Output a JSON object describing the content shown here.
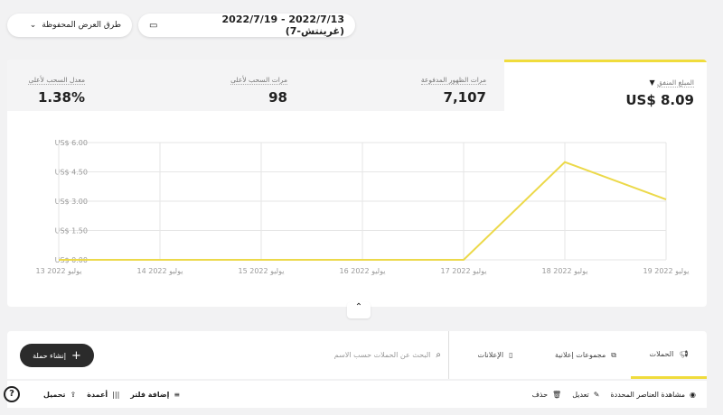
{
  "header": {
    "date_range": "2022/7/13 - 2022/7/19 (غرينتش-7)",
    "saved_views": "طرق العرض المحفوظة"
  },
  "stats": [
    {
      "label": "المبلغ المنفق",
      "value": "US$ 8.09",
      "selected": true
    },
    {
      "label": "مرات الظهور المدفوعة",
      "value": "7,107"
    },
    {
      "label": "مرات السحب لأعلى",
      "value": "98"
    },
    {
      "label": "معدل السحب لأعلى",
      "value": "1.38%"
    }
  ],
  "chart_data": {
    "type": "line",
    "x": [
      "13 يوليو 2022",
      "14 يوليو 2022",
      "15 يوليو 2022",
      "16 يوليو 2022",
      "17 يوليو 2022",
      "18 يوليو 2022",
      "19 يوليو 2022"
    ],
    "values": [
      0,
      0,
      0,
      0,
      0,
      5.0,
      3.09
    ],
    "yticks": [
      "US$ 0.00",
      "US$ 1.50",
      "US$ 3.00",
      "US$ 4.50",
      "US$ 6.00"
    ],
    "ylim": [
      0,
      6
    ],
    "color": "#ecd94a",
    "grid": true
  },
  "tabs": {
    "campaigns": "الحملات",
    "ad_sets": "مجموعات إعلانية",
    "ads": "الإعلانات"
  },
  "search": {
    "placeholder": "البحث عن الحملات حسب الاسم"
  },
  "create_button": "إنشاء حملة",
  "toolbar": {
    "view_selected": "مشاهدة العناصر المحددة",
    "edit": "تعديل",
    "delete": "حذف",
    "add_filter": "إضافة فلتر",
    "columns": "أعمدة",
    "download": "تحميل"
  }
}
